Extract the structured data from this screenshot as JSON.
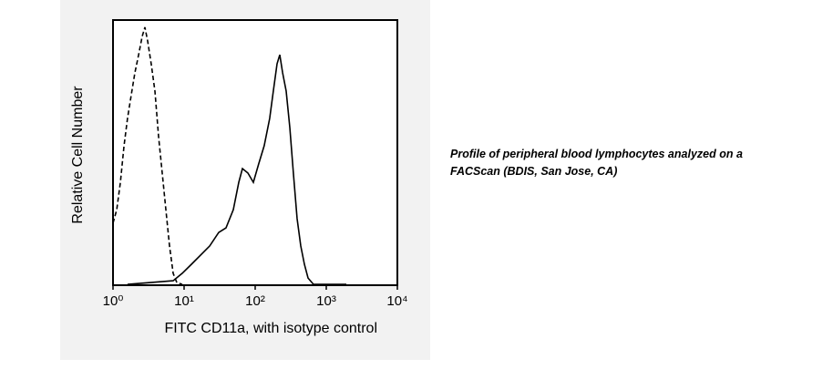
{
  "chart_data": {
    "type": "histogram-overlay",
    "xlabel": "FITC CD11a, with isotype control",
    "ylabel": "Relative Cell Number",
    "annotation": "Profile of peripheral blood lymphocytes analyzed on a FACScan (BDIS, San Jose, CA)",
    "xscale": "log",
    "xlim": [
      1,
      10000
    ],
    "ylim": [
      0,
      100
    ],
    "xticks": [
      {
        "value": 1,
        "label": "10⁰"
      },
      {
        "value": 10,
        "label": "10¹"
      },
      {
        "value": 100,
        "label": "10²"
      },
      {
        "value": 1000,
        "label": "10³"
      },
      {
        "value": 10000,
        "label": "10⁴"
      }
    ],
    "series": [
      {
        "color": "#000000",
        "dash": "dashed",
        "x": [
          1,
          1.13,
          1.27,
          1.43,
          1.6,
          1.8,
          2.03,
          2.29,
          2.57,
          2.81,
          3.07,
          3.45,
          3.89,
          4.38,
          4.92,
          5.54,
          6.24,
          7.02,
          7.89,
          9.42
        ],
        "values": [
          23.4,
          28.5,
          38.8,
          52.6,
          62.9,
          71.5,
          80.1,
          86.9,
          93.8,
          97.3,
          92.1,
          83.5,
          73.2,
          56.0,
          42.3,
          28.5,
          14.8,
          4.5,
          1.0,
          0.3
        ]
      },
      {
        "color": "#000000",
        "dash": "solid",
        "x": [
          1.6,
          7.02,
          9.42,
          12.7,
          17.0,
          22.9,
          30.7,
          38.9,
          49.2,
          58.7,
          66.2,
          78.9,
          94.2,
          112,
          134,
          160,
          180,
          203,
          222,
          243,
          273,
          307,
          345,
          389,
          438,
          492,
          554,
          662,
          1914
        ],
        "values": [
          0.3,
          1.7,
          4.5,
          7.9,
          11.3,
          14.8,
          19.9,
          21.6,
          28.5,
          38.8,
          44.0,
          42.3,
          38.8,
          45.7,
          52.6,
          62.9,
          73.2,
          83.5,
          86.9,
          80.1,
          73.2,
          59.5,
          42.3,
          25.1,
          14.8,
          7.9,
          2.7,
          0.3,
          0.3
        ]
      }
    ]
  }
}
